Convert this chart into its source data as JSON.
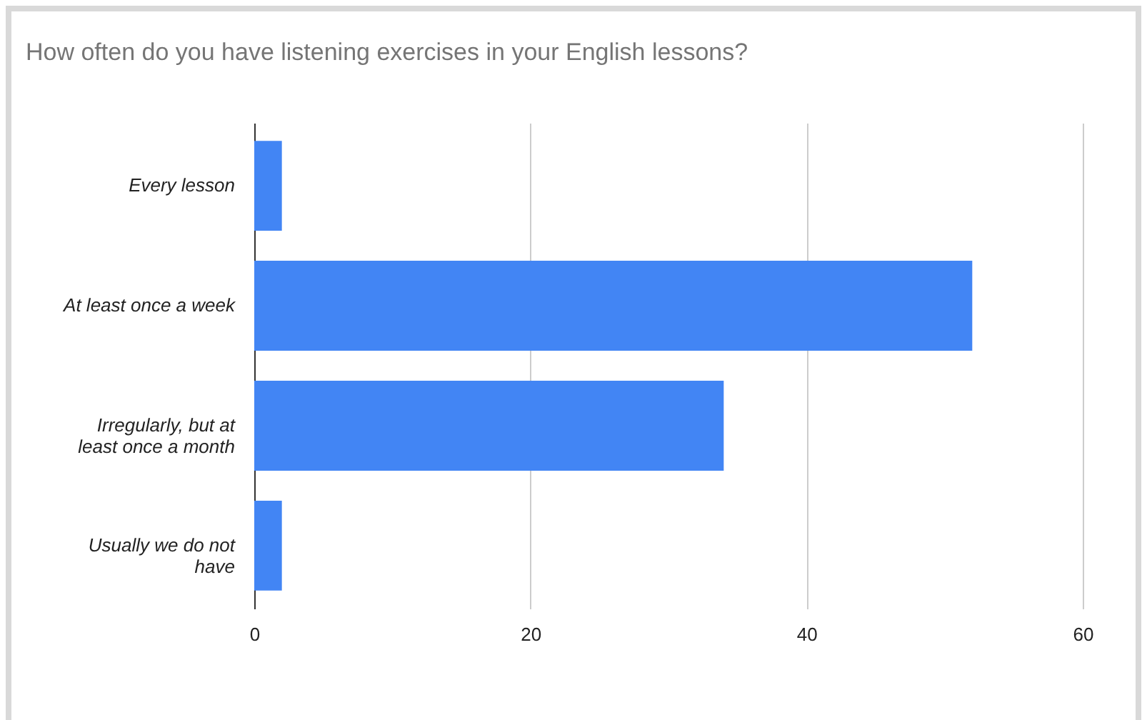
{
  "chart_data": {
    "type": "bar",
    "orientation": "horizontal",
    "title": "How often do you have listening exercises in your English lessons?",
    "categories": [
      "Every lesson",
      "At least once a week",
      "Irregularly, but at least once a month",
      "Usually we do not have"
    ],
    "values": [
      2,
      52,
      34,
      2
    ],
    "color": "#4285f4",
    "xlim": [
      0,
      60
    ],
    "xticks": [
      0,
      20,
      40,
      60
    ],
    "grid": "x"
  }
}
